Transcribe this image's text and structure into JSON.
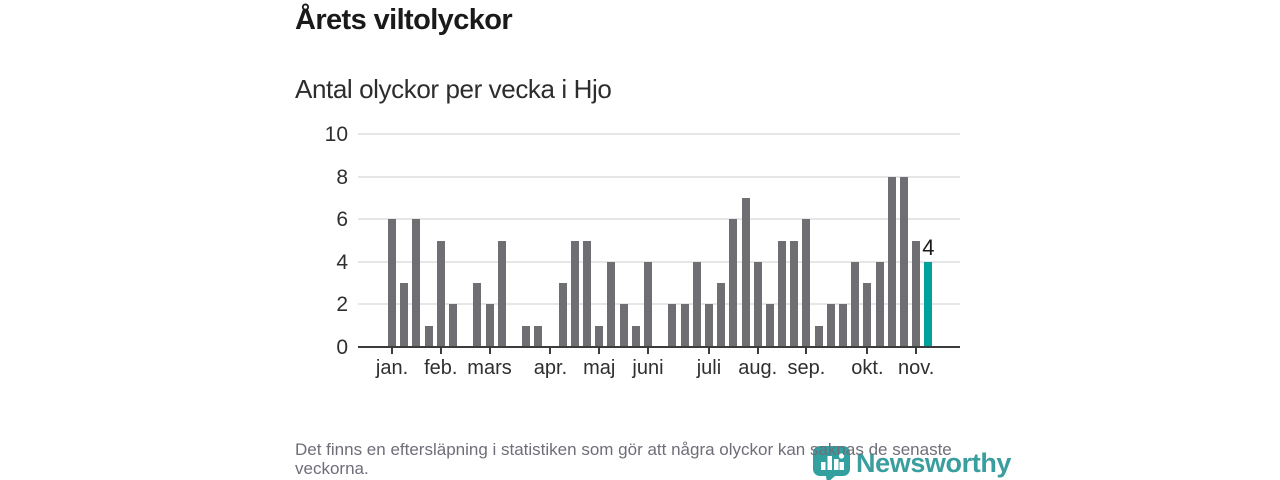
{
  "page": {
    "title": "Årets viltolyckor",
    "subtitle": "Antal olyckor per vecka i Hjo",
    "footnote": "Det finns en eftersläpning i statistiken som gör att några olyckor kan saknas de senaste veckorna."
  },
  "chart_data": {
    "type": "bar",
    "title": "Årets viltolyckor",
    "subtitle": "Antal olyckor per vecka i Hjo",
    "x_unit": "vecka",
    "values": [
      6,
      3,
      6,
      1,
      5,
      2,
      0,
      3,
      2,
      5,
      0,
      1,
      1,
      0,
      3,
      5,
      5,
      1,
      4,
      2,
      1,
      4,
      0,
      2,
      2,
      4,
      2,
      3,
      6,
      7,
      4,
      2,
      5,
      5,
      6,
      1,
      2,
      2,
      4,
      3,
      4,
      8,
      8,
      5,
      4
    ],
    "month_ticks": [
      {
        "label": "jan.",
        "index": 0
      },
      {
        "label": "feb.",
        "index": 4
      },
      {
        "label": "mars",
        "index": 8
      },
      {
        "label": "apr.",
        "index": 13
      },
      {
        "label": "maj",
        "index": 17
      },
      {
        "label": "juni",
        "index": 21
      },
      {
        "label": "juli",
        "index": 26
      },
      {
        "label": "aug.",
        "index": 30
      },
      {
        "label": "sep.",
        "index": 34
      },
      {
        "label": "okt.",
        "index": 39
      },
      {
        "label": "nov.",
        "index": 43
      }
    ],
    "yticks": [
      0,
      2,
      4,
      6,
      8,
      10
    ],
    "ylim": [
      0,
      10
    ],
    "grid": true,
    "legend": false,
    "bar_color": "#6e6e73",
    "highlight_color": "#00a29d",
    "highlight_index": 44,
    "highlight_value_label": "4"
  },
  "logo": {
    "text": "Newsworthy",
    "color": "#3a9e9e"
  }
}
